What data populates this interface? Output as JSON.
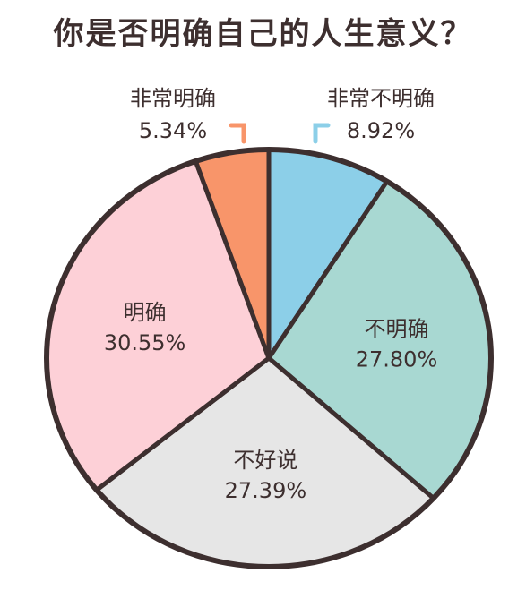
{
  "chart_data": {
    "type": "pie",
    "title": "你是否明确自己的人生意义？",
    "categories": [
      "非常不明确",
      "不明确",
      "不好说",
      "明确",
      "非常明确"
    ],
    "values": [
      8.92,
      27.8,
      27.39,
      30.55,
      5.34
    ],
    "value_labels": [
      "8.92%",
      "27.80%",
      "27.39%",
      "30.55%",
      "5.34%"
    ],
    "start": "12 o'clock",
    "direction": "clockwise",
    "colors": {
      "非常不明确": "#8ccfe8",
      "不明确": "#a8d8d2",
      "不好说": "#e6e6e6",
      "明确": "#fdd0d7",
      "非常明确": "#f8956a"
    },
    "outline_color": "#3d2f2f"
  }
}
